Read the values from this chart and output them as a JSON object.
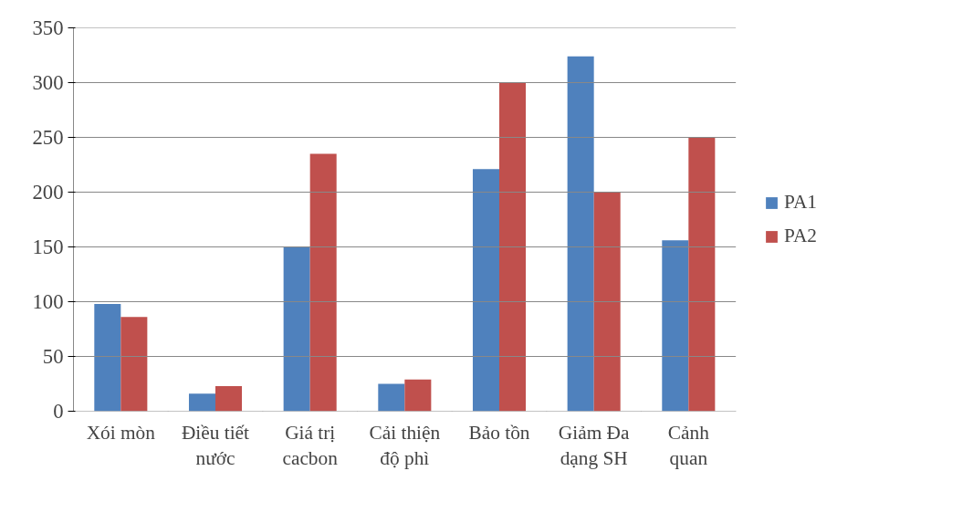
{
  "chart_data": {
    "type": "bar",
    "categories": [
      "Xói mòn",
      "Điều tiết\nnước",
      "Giá trị\ncacbon",
      "Cải thiện\nđộ phì",
      "Bảo tồn",
      "Giảm Đa\ndạng SH",
      "Cảnh\nquan"
    ],
    "series": [
      {
        "name": "PA1",
        "color": "#4f81bd",
        "values": [
          98,
          16,
          150,
          25,
          221,
          324,
          156
        ]
      },
      {
        "name": "PA2",
        "color": "#c0504d",
        "values": [
          86,
          23,
          235,
          29,
          300,
          200,
          250
        ]
      }
    ],
    "ylim": [
      0,
      350
    ],
    "yticks": [
      0,
      50,
      100,
      150,
      200,
      250,
      300,
      350
    ],
    "grid": "y",
    "legend": "right"
  }
}
